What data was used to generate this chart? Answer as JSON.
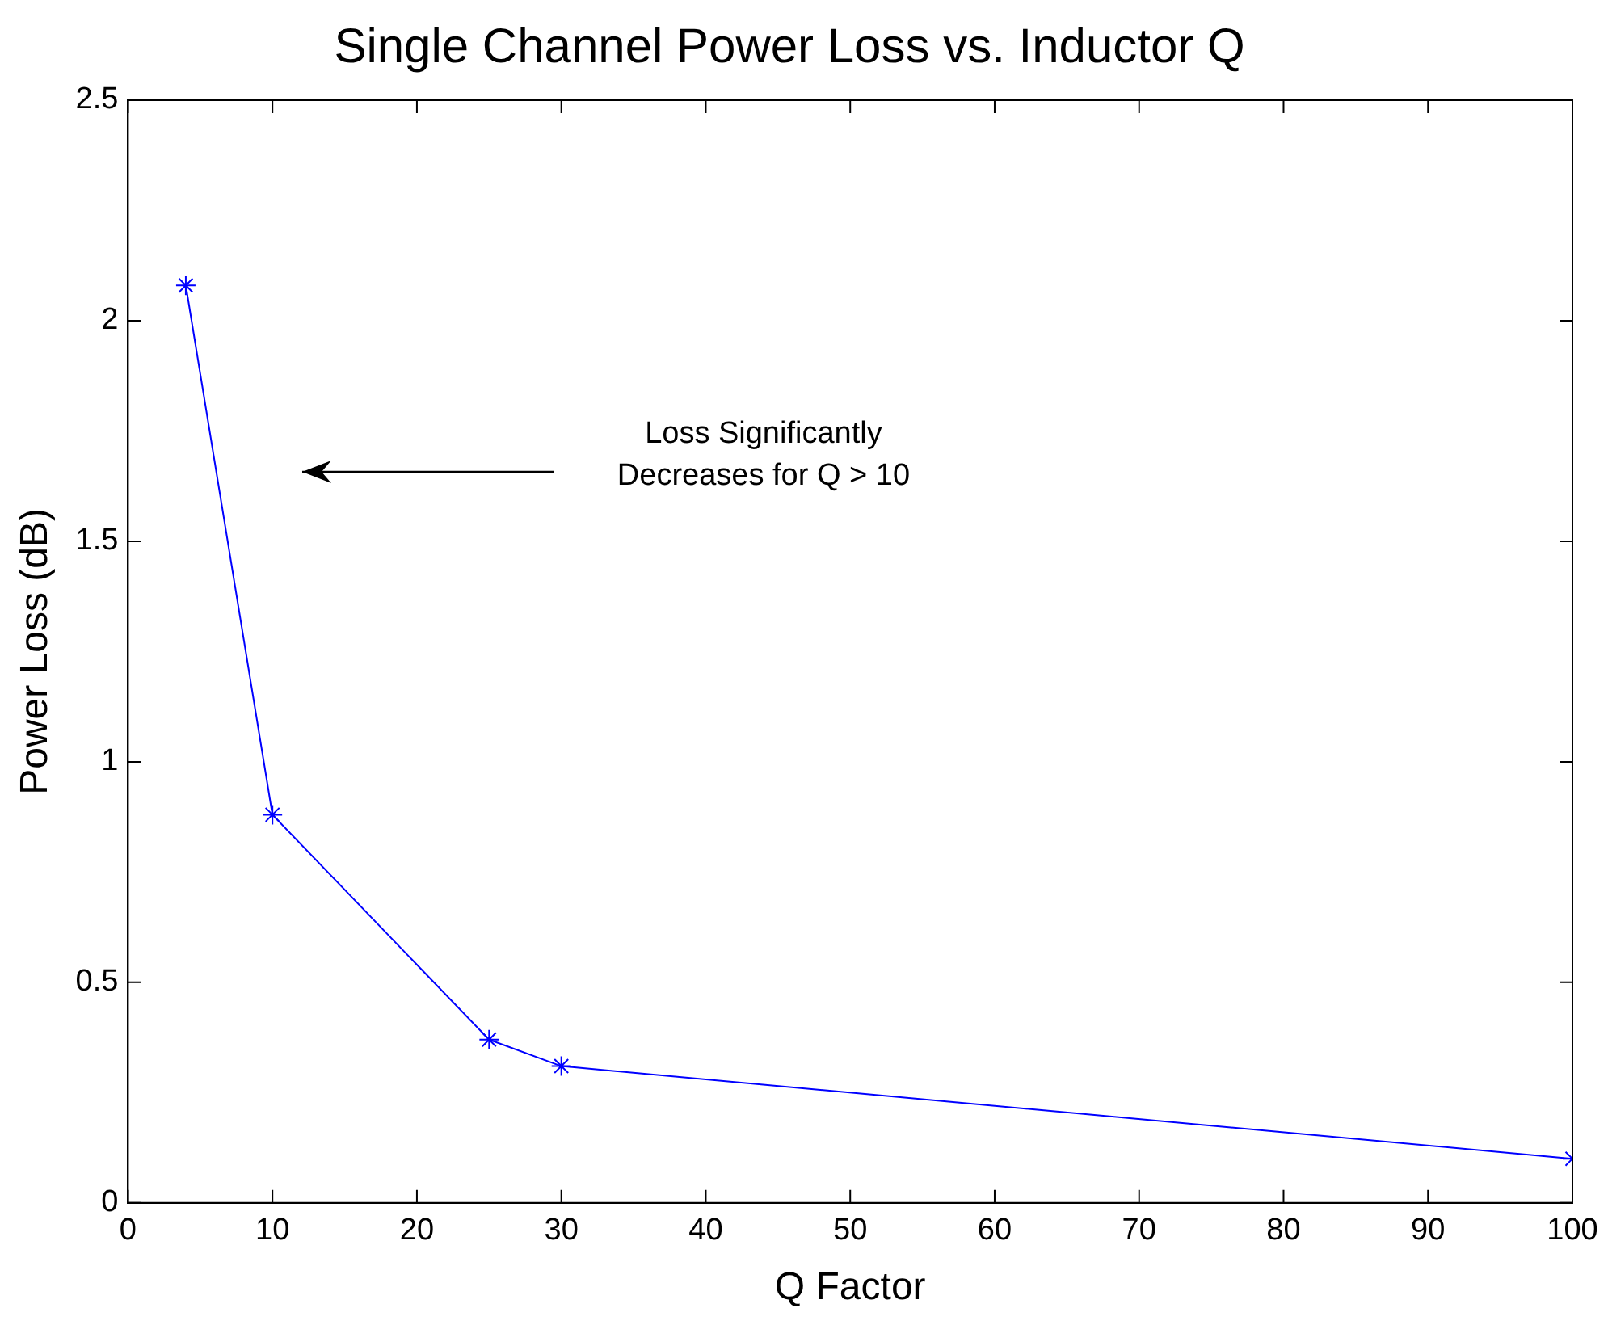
{
  "chart_data": {
    "type": "line",
    "title": "Single Channel Power Loss vs. Inductor Q",
    "xlabel": "Q Factor",
    "ylabel": "Power Loss (dB)",
    "x": [
      4,
      10,
      25,
      30,
      100
    ],
    "series": [
      {
        "color": "#0000ff",
        "values": [
          2.08,
          0.88,
          0.37,
          0.31,
          0.1
        ]
      }
    ],
    "xlim": [
      0,
      100
    ],
    "xticks": [
      0,
      10,
      20,
      30,
      40,
      50,
      60,
      70,
      80,
      90,
      100
    ],
    "ylim": [
      0,
      2.5
    ],
    "yticks": [
      0,
      0.5,
      1,
      1.5,
      2,
      2.5
    ],
    "grid": false,
    "legend": false,
    "marker": "cross",
    "line_style": "solid",
    "annotations": [
      "Loss Significantly\nDecreases for Q > 10"
    ]
  }
}
